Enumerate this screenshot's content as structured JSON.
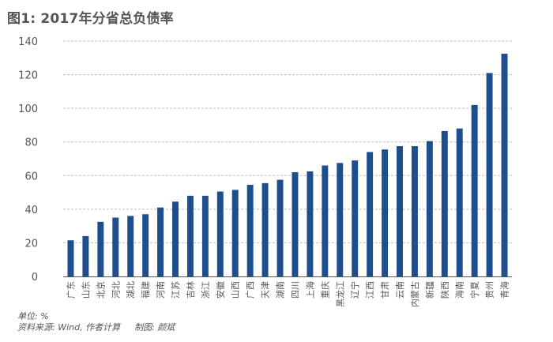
{
  "title": "图1: 2017年分省总负债率",
  "footnotes": {
    "unit": "单位: %",
    "source": "资料来源: Wind, 作者计算",
    "credit": "制图: 颜斌"
  },
  "colors": {
    "bar": "#1f4e8c",
    "grid": "#bfbfbf",
    "axis": "#555555",
    "text": "#555555"
  },
  "chart_data": {
    "type": "bar",
    "title": "图1: 2017年分省总负债率",
    "xlabel": "",
    "ylabel": "",
    "ylim": [
      0,
      140
    ],
    "yticks": [
      0,
      20,
      40,
      60,
      80,
      100,
      120,
      140
    ],
    "grid": true,
    "legend": "none",
    "categories": [
      "广东",
      "山东",
      "北京",
      "河北",
      "湖北",
      "福建",
      "河南",
      "江苏",
      "吉林",
      "浙江",
      "安徽",
      "山西",
      "广西",
      "天津",
      "湖南",
      "四川",
      "上海",
      "重庆",
      "黑龙江",
      "辽宁",
      "江西",
      "甘肃",
      "云南",
      "内蒙古",
      "新疆",
      "陕西",
      "海南",
      "宁夏",
      "贵州",
      "青海"
    ],
    "values": [
      21.5,
      24,
      32.5,
      35,
      36,
      37,
      41,
      44.5,
      48,
      48,
      50.5,
      51.5,
      54.5,
      55.5,
      57.5,
      62,
      62.5,
      66,
      67.5,
      69,
      74,
      75.5,
      77.5,
      77.5,
      80.5,
      86.5,
      88,
      102,
      121,
      132.5
    ]
  }
}
